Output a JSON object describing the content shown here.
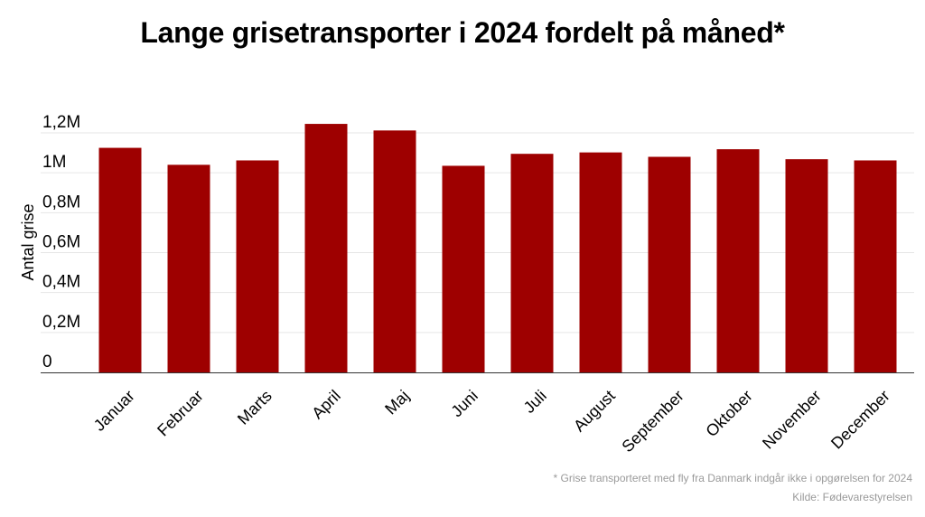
{
  "chart_data": {
    "type": "bar",
    "title": "Lange grisetransporter i 2024 fordelt på måned*",
    "xlabel": "",
    "ylabel": "Antal grise",
    "categories": [
      "Januar",
      "Februar",
      "Marts",
      "April",
      "Maj",
      "Juni",
      "Juli",
      "August",
      "September",
      "Oktober",
      "November",
      "December"
    ],
    "values": [
      1125000,
      1040000,
      1062000,
      1245000,
      1212000,
      1035000,
      1095000,
      1102000,
      1080000,
      1118000,
      1068000,
      1062000
    ],
    "ylim": [
      0,
      1200000
    ],
    "yticks": [
      0,
      200000,
      400000,
      600000,
      800000,
      1000000,
      1200000
    ],
    "ytick_labels": [
      "0",
      "0,2M",
      "0,4M",
      "0,6M",
      "0,8M",
      "1M",
      "1,2M"
    ],
    "grid": true,
    "bar_color": "#9e0000"
  },
  "footnote": "* Grise transporteret med fly fra Danmark indgår ikke i opgørelsen for 2024",
  "source": "Kilde: Fødevarestyrelsen"
}
